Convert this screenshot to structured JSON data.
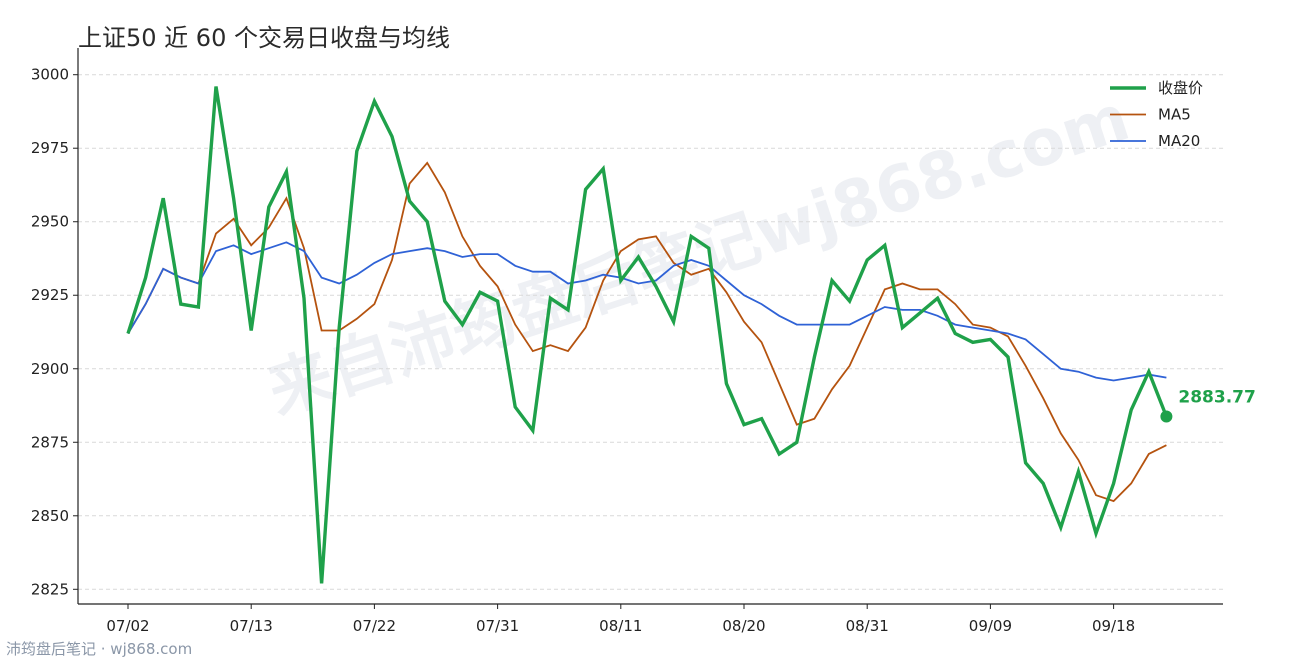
{
  "title": "上证50 近 60 个交易日收盘与均线",
  "watermark": "来自沛筠盘后笔记wj868.com",
  "footer": "沛筠盘后笔记 · wj868.com",
  "colors": {
    "close": "#1fa14a",
    "ma5": "#b5530f",
    "ma20": "#2f62d6",
    "grid": "#d9d9d9",
    "axis": "#222222"
  },
  "chart_data": {
    "type": "line",
    "title": "上证50 近 60 个交易日收盘与均线",
    "ylim": [
      2820,
      3005
    ],
    "yticks": [
      2825,
      2850,
      2875,
      2900,
      2925,
      2950,
      2975,
      3000
    ],
    "xtick_labels": [
      {
        "index": 0,
        "label": "07/02"
      },
      {
        "index": 7,
        "label": "07/13"
      },
      {
        "index": 14,
        "label": "07/22"
      },
      {
        "index": 21,
        "label": "07/31"
      },
      {
        "index": 28,
        "label": "08/11"
      },
      {
        "index": 35,
        "label": "08/20"
      },
      {
        "index": 42,
        "label": "08/31"
      },
      {
        "index": 49,
        "label": "09/09"
      },
      {
        "index": 56,
        "label": "09/18"
      }
    ],
    "grid": "horizontal dashed",
    "legend_position": "top-right",
    "last_value_label": "2883.77",
    "series": [
      {
        "name": "收盘价",
        "values": [
          2912,
          2931,
          2958,
          2922,
          2921,
          2996,
          2958,
          2913,
          2955,
          2967,
          2924,
          2827,
          2914,
          2974,
          2991,
          2979,
          2957,
          2950,
          2923,
          2915,
          2926,
          2923,
          2887,
          2879,
          2924,
          2920,
          2961,
          2968,
          2930,
          2938,
          2928,
          2916,
          2945,
          2941,
          2895,
          2881,
          2883,
          2871,
          2875,
          2904,
          2930,
          2923,
          2937,
          2942,
          2914,
          2919,
          2924,
          2912,
          2909,
          2910,
          2904,
          2868,
          2861,
          2846,
          2865,
          2844,
          2861,
          2886,
          2899,
          2883.77
        ]
      },
      {
        "name": "MA5",
        "values": [
          2912,
          2922,
          2934,
          2931,
          2929,
          2946,
          2951,
          2942,
          2948,
          2958,
          2941,
          2913,
          2913,
          2917,
          2922,
          2937,
          2963,
          2970,
          2960,
          2945,
          2935,
          2928,
          2915,
          2906,
          2908,
          2906,
          2914,
          2930,
          2940,
          2944,
          2945,
          2936,
          2932,
          2934,
          2926,
          2916,
          2909,
          2895,
          2881,
          2883,
          2893,
          2901,
          2914,
          2927,
          2929,
          2927,
          2927,
          2922,
          2915,
          2914,
          2911,
          2901,
          2890,
          2878,
          2869,
          2857,
          2855,
          2861,
          2871,
          2874
        ]
      },
      {
        "name": "MA20",
        "values": [
          2912,
          2922,
          2934,
          2931,
          2929,
          2940,
          2942,
          2939,
          2941,
          2943,
          2940,
          2931,
          2929,
          2932,
          2936,
          2939,
          2940,
          2941,
          2940,
          2938,
          2939,
          2939,
          2935,
          2933,
          2933,
          2929,
          2930,
          2932,
          2931,
          2929,
          2930,
          2935,
          2937,
          2935,
          2930,
          2925,
          2922,
          2918,
          2915,
          2915,
          2915,
          2915,
          2918,
          2921,
          2920,
          2920,
          2918,
          2915,
          2914,
          2913,
          2912,
          2910,
          2905,
          2900,
          2899,
          2897,
          2896,
          2897,
          2898,
          2897
        ]
      }
    ]
  }
}
